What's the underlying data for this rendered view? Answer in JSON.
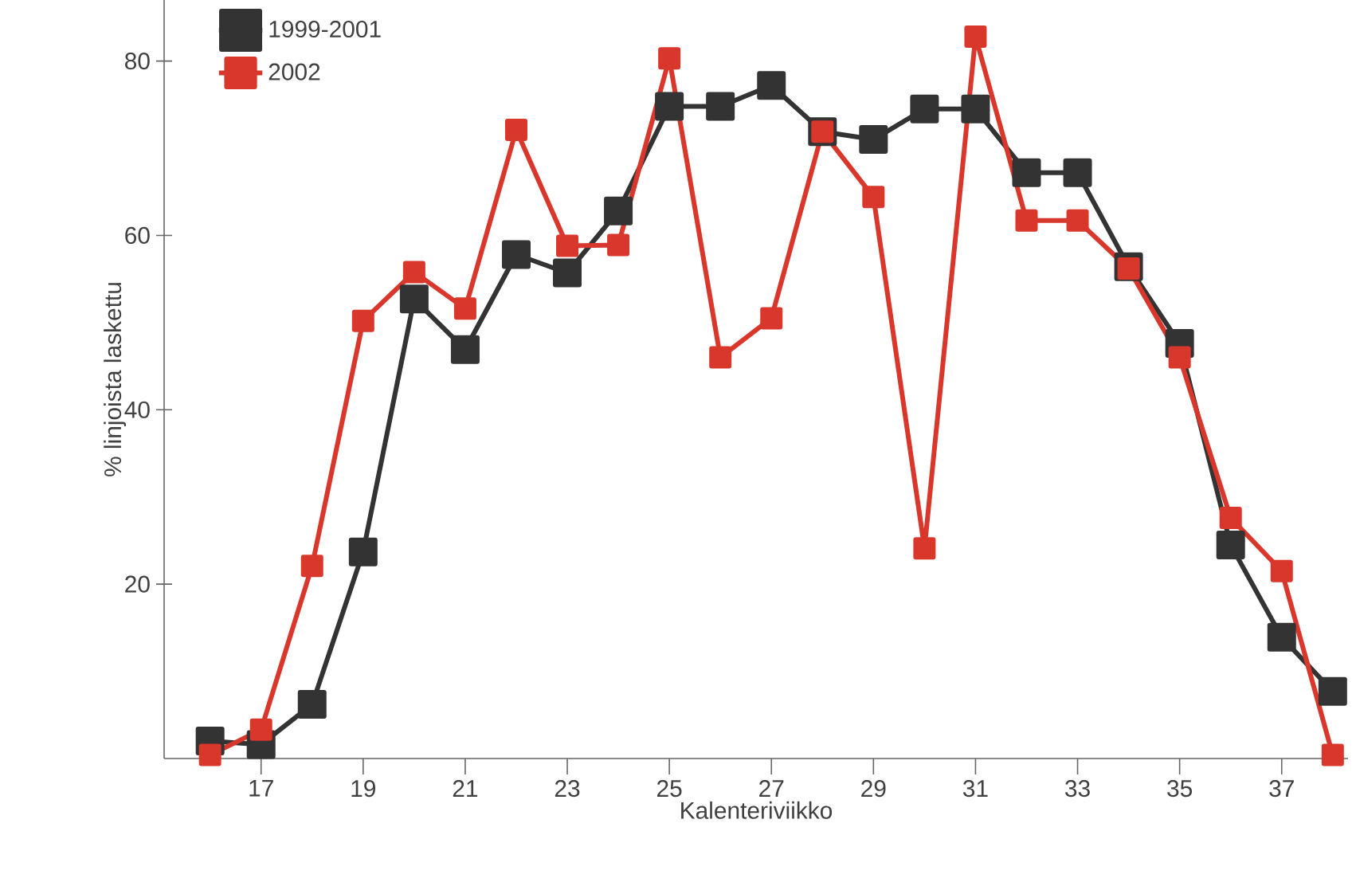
{
  "chart_data": {
    "type": "line",
    "xlabel": "Kalenteriviikko",
    "ylabel": "% linjoista laskettu",
    "x": [
      16,
      17,
      18,
      19,
      20,
      21,
      22,
      23,
      24,
      25,
      26,
      27,
      28,
      29,
      30,
      31,
      32,
      33,
      34,
      35,
      36,
      37,
      38
    ],
    "series": [
      {
        "name": "1999-2001",
        "color": "#333333",
        "values": [
          2.0,
          1.6,
          6.2,
          23.7,
          52.7,
          46.9,
          57.8,
          55.7,
          62.8,
          74.8,
          74.8,
          77.2,
          71.9,
          71.0,
          74.5,
          74.5,
          67.2,
          67.2,
          56.4,
          47.6,
          24.5,
          13.9,
          7.7
        ]
      },
      {
        "name": "2002",
        "color": "#d9372b",
        "values": [
          0.4,
          3.3,
          22.1,
          50.2,
          55.8,
          51.6,
          72.1,
          58.8,
          58.9,
          80.3,
          46.0,
          50.5,
          71.9,
          64.4,
          24.1,
          82.8,
          61.7,
          61.7,
          56.2,
          46.0,
          27.6,
          21.5,
          0.4
        ]
      }
    ],
    "xlim": [
      15.1,
      38.3
    ],
    "ylim": [
      0,
      87
    ],
    "xticks": [
      17,
      19,
      21,
      23,
      25,
      27,
      29,
      31,
      33,
      35,
      37
    ],
    "yticks": [
      20,
      40,
      60,
      80
    ],
    "grid": false,
    "legend": "top left",
    "marker": "square",
    "line_style": "solid"
  }
}
